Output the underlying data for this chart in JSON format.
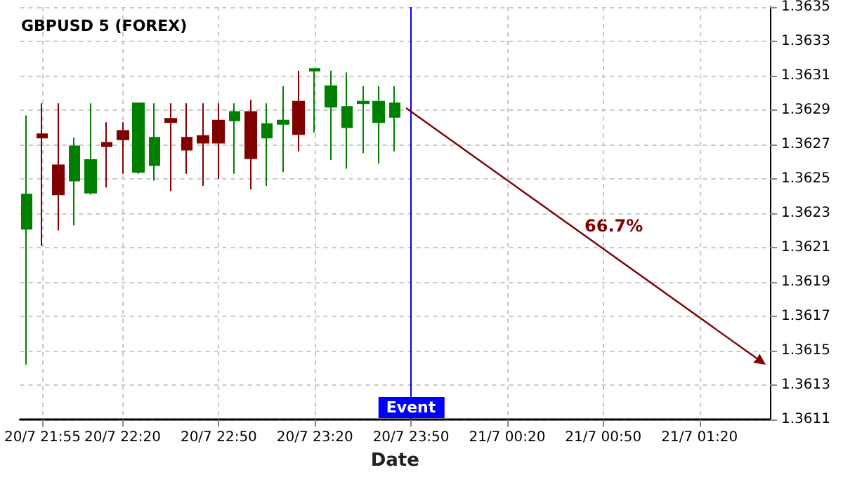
{
  "chart_data": {
    "type": "candlestick",
    "title": "GBPUSD 5 (FOREX)",
    "xlabel": "Date",
    "xlim": [
      "--07-20T21:48",
      "--07-21T01:42"
    ],
    "xticks": [
      {
        "value": "--07-20T21:55",
        "label": "20/7 21:55"
      },
      {
        "value": "--07-20T22:20",
        "label": "20/7 22:20"
      },
      {
        "value": "--07-20T22:50",
        "label": "20/7 22:50"
      },
      {
        "value": "--07-20T23:20",
        "label": "20/7 23:20"
      },
      {
        "value": "--07-20T23:50",
        "label": "20/7 23:50"
      },
      {
        "value": "--07-21T00:20",
        "label": "21/7 00:20"
      },
      {
        "value": "--07-21T00:50",
        "label": "21/7 00:50"
      },
      {
        "value": "--07-21T01:20",
        "label": "21/7 01:20"
      }
    ],
    "ylim": [
      1.3611,
      1.3635
    ],
    "yticks": [
      1.3611,
      1.3613,
      1.3615,
      1.3617,
      1.3619,
      1.3621,
      1.3623,
      1.3625,
      1.3627,
      1.3629,
      1.3631,
      1.3633,
      1.3635
    ],
    "grid": true,
    "x": [
      "--07-20T21:50",
      "--07-20T21:55",
      "--07-20T22:00",
      "--07-20T22:05",
      "--07-20T22:10",
      "--07-20T22:15",
      "--07-20T22:20",
      "--07-20T22:25",
      "--07-20T22:30",
      "--07-20T22:35",
      "--07-20T22:40",
      "--07-20T22:45",
      "--07-20T22:50",
      "--07-20T22:55",
      "--07-20T23:00",
      "--07-20T23:05",
      "--07-20T23:10",
      "--07-20T23:15",
      "--07-20T23:20",
      "--07-20T23:25",
      "--07-20T23:30",
      "--07-20T23:35",
      "--07-20T23:40",
      "--07-20T23:45"
    ],
    "ohlc": [
      [
        1.36221,
        1.36287,
        1.36142,
        1.36241
      ],
      [
        1.36276,
        1.36294,
        1.36211,
        1.36274
      ],
      [
        1.36258,
        1.36294,
        1.3622,
        1.36241
      ],
      [
        1.36249,
        1.36274,
        1.36223,
        1.36269
      ],
      [
        1.36242,
        1.36294,
        1.36241,
        1.36261
      ],
      [
        1.36271,
        1.36283,
        1.36245,
        1.36269
      ],
      [
        1.36278,
        1.36283,
        1.36253,
        1.36273
      ],
      [
        1.36254,
        1.36294,
        1.36253,
        1.36294
      ],
      [
        1.36258,
        1.36294,
        1.36249,
        1.36274
      ],
      [
        1.36285,
        1.36294,
        1.36243,
        1.36283
      ],
      [
        1.36274,
        1.36294,
        1.36253,
        1.36267
      ],
      [
        1.36275,
        1.36294,
        1.36246,
        1.36271
      ],
      [
        1.36284,
        1.36294,
        1.3625,
        1.36271
      ],
      [
        1.36284,
        1.36294,
        1.36253,
        1.36289
      ],
      [
        1.36289,
        1.36296,
        1.36244,
        1.36262
      ],
      [
        1.36274,
        1.36294,
        1.36246,
        1.36282
      ],
      [
        1.36282,
        1.36304,
        1.36254,
        1.36284
      ],
      [
        1.36295,
        1.36313,
        1.36266,
        1.36276
      ],
      [
        1.36313,
        1.36314,
        1.36277,
        1.36314
      ],
      [
        1.36292,
        1.36313,
        1.36261,
        1.36304
      ],
      [
        1.3628,
        1.36312,
        1.36256,
        1.36292
      ],
      [
        1.36294,
        1.36304,
        1.36265,
        1.36295
      ],
      [
        1.36283,
        1.36304,
        1.36259,
        1.36295
      ],
      [
        1.36286,
        1.36304,
        1.36266,
        1.36294
      ]
    ],
    "colors": [
      "#008000",
      "#800000",
      "#800000",
      "#008000",
      "#008000",
      "#800000",
      "#800000",
      "#008000",
      "#008000",
      "#800000",
      "#800000",
      "#800000",
      "#800000",
      "#008000",
      "#800000",
      "#008000",
      "#008000",
      "#800000",
      "#008000",
      "#008000",
      "#008000",
      "#008000",
      "#008000",
      "#008000"
    ],
    "annotations": [
      "66.7%"
    ],
    "ref_lines": [
      {
        "axis": "x",
        "value": "--07-20T23:50",
        "label": "Event",
        "color": "#0000ff"
      }
    ]
  }
}
